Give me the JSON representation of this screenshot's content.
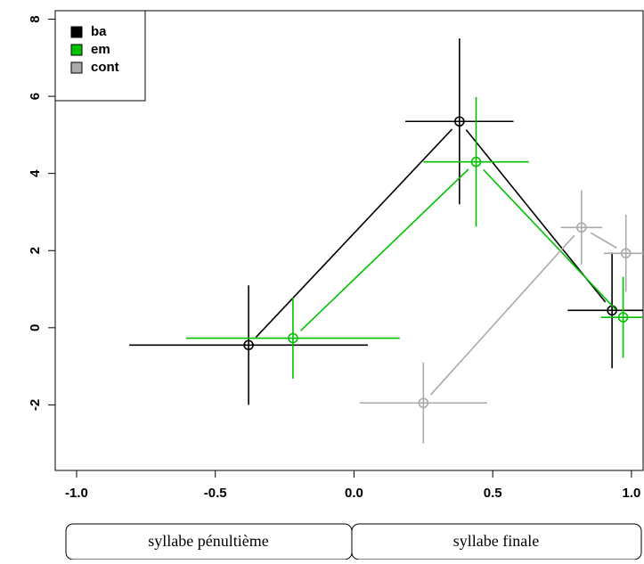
{
  "chart_data": {
    "type": "scatter",
    "series": [
      {
        "name": "ba",
        "color": "#000000",
        "x": [
          -0.38,
          0.38,
          0.93
        ],
        "values": [
          -0.45,
          5.35,
          0.45
        ],
        "xerr": [
          0.43,
          0.195,
          0.16
        ],
        "yerr": [
          1.55,
          2.15,
          1.5
        ]
      },
      {
        "name": "em",
        "color": "#00c000",
        "x": [
          -0.22,
          0.44,
          0.97
        ],
        "values": [
          -0.27,
          4.3,
          0.27
        ],
        "xerr": [
          0.385,
          0.19,
          0.08
        ],
        "yerr": [
          1.05,
          1.68,
          1.05
        ]
      },
      {
        "name": "cont",
        "color": "#aaaaaa",
        "x": [
          0.25,
          0.82,
          0.98
        ],
        "values": [
          -1.95,
          2.6,
          1.93
        ],
        "xerr": [
          0.23,
          0.075,
          0.08
        ],
        "yerr": [
          1.05,
          0.96,
          1.0
        ]
      }
    ],
    "xlim": [
      -1.077,
      1.042
    ],
    "ylim": [
      -3.7,
      8.22
    ],
    "xticks": [
      {
        "value": -1,
        "label": "-1.0"
      },
      -0.5,
      {
        "value": 0,
        "label": "0.0"
      },
      0.5,
      {
        "value": 1,
        "label": "1.0"
      }
    ],
    "yticks": [
      -2,
      0,
      2,
      4,
      6,
      8
    ],
    "legend": "top-left",
    "annotations": [
      "syllabe pénultième",
      "syllabe finale"
    ]
  }
}
